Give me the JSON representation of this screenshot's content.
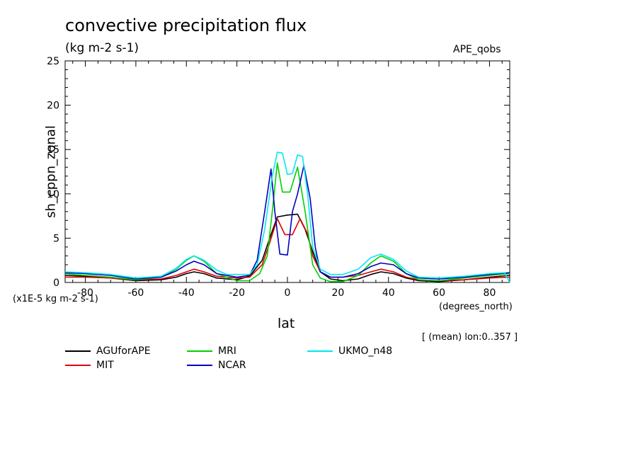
{
  "chart_data": {
    "type": "line",
    "title": "convective precipitation flux",
    "units": "(kg m-2 s-1)",
    "experiment": "APE_qobs",
    "ylabel": "sh_cppn_zonal",
    "scale_note": "(x1E-5 kg m-2 s-1)",
    "xlabel": "lat",
    "xunits": "(degrees_north)",
    "aggregation": "[ (mean) lon:0..357 ]",
    "xlim": [
      -88,
      88
    ],
    "ylim": [
      0,
      25
    ],
    "xticks": [
      -80,
      -60,
      -40,
      -20,
      0,
      20,
      40,
      60,
      80
    ],
    "yticks": [
      0,
      5,
      10,
      15,
      20,
      25
    ],
    "grid": false,
    "series": [
      {
        "name": "AGUforAPE",
        "color": "#000000",
        "points": [
          [
            -88,
            0.8
          ],
          [
            -80,
            0.7
          ],
          [
            -70,
            0.5
          ],
          [
            -60,
            0.2
          ],
          [
            -50,
            0.3
          ],
          [
            -44,
            0.6
          ],
          [
            -40,
            1.0
          ],
          [
            -37,
            1.2
          ],
          [
            -33,
            1.0
          ],
          [
            -28,
            0.5
          ],
          [
            -20,
            0.3
          ],
          [
            -15,
            0.7
          ],
          [
            -10,
            2.5
          ],
          [
            -7,
            5.0
          ],
          [
            -4,
            7.4
          ],
          [
            0,
            7.6
          ],
          [
            4,
            7.7
          ],
          [
            7,
            6.0
          ],
          [
            10,
            3.5
          ],
          [
            13,
            1.2
          ],
          [
            17,
            0.4
          ],
          [
            22,
            0.2
          ],
          [
            28,
            0.4
          ],
          [
            33,
            0.9
          ],
          [
            37,
            1.2
          ],
          [
            42,
            1.0
          ],
          [
            47,
            0.5
          ],
          [
            52,
            0.2
          ],
          [
            60,
            0.1
          ],
          [
            70,
            0.3
          ],
          [
            80,
            0.6
          ],
          [
            88,
            0.8
          ]
        ]
      },
      {
        "name": "MIT",
        "color": "#e00000",
        "points": [
          [
            -88,
            0.6
          ],
          [
            -80,
            0.6
          ],
          [
            -70,
            0.5
          ],
          [
            -60,
            0.3
          ],
          [
            -50,
            0.4
          ],
          [
            -44,
            0.8
          ],
          [
            -40,
            1.2
          ],
          [
            -37,
            1.5
          ],
          [
            -33,
            1.2
          ],
          [
            -28,
            0.7
          ],
          [
            -20,
            0.5
          ],
          [
            -15,
            0.6
          ],
          [
            -10,
            2.0
          ],
          [
            -7,
            4.5
          ],
          [
            -4,
            7.2
          ],
          [
            -1,
            5.4
          ],
          [
            2,
            5.4
          ],
          [
            5,
            7.2
          ],
          [
            8,
            5.5
          ],
          [
            10,
            3.0
          ],
          [
            13,
            1.2
          ],
          [
            17,
            0.6
          ],
          [
            22,
            0.6
          ],
          [
            28,
            0.8
          ],
          [
            33,
            1.2
          ],
          [
            37,
            1.5
          ],
          [
            42,
            1.2
          ],
          [
            47,
            0.6
          ],
          [
            52,
            0.3
          ],
          [
            60,
            0.2
          ],
          [
            70,
            0.3
          ],
          [
            80,
            0.5
          ],
          [
            88,
            0.6
          ]
        ]
      },
      {
        "name": "MRI",
        "color": "#00d000",
        "points": [
          [
            -88,
            1.0
          ],
          [
            -80,
            0.8
          ],
          [
            -70,
            0.6
          ],
          [
            -60,
            0.3
          ],
          [
            -50,
            0.6
          ],
          [
            -44,
            1.5
          ],
          [
            -40,
            2.5
          ],
          [
            -37,
            3.0
          ],
          [
            -33,
            2.4
          ],
          [
            -28,
            1.0
          ],
          [
            -20,
            0.2
          ],
          [
            -15,
            0.2
          ],
          [
            -11,
            1.0
          ],
          [
            -8,
            3.0
          ],
          [
            -6,
            8.0
          ],
          [
            -4,
            13.5
          ],
          [
            -2,
            10.2
          ],
          [
            1,
            10.2
          ],
          [
            4,
            13.0
          ],
          [
            7,
            8.0
          ],
          [
            10,
            2.0
          ],
          [
            13,
            0.5
          ],
          [
            17,
            0.1
          ],
          [
            22,
            0.1
          ],
          [
            28,
            0.8
          ],
          [
            33,
            2.2
          ],
          [
            37,
            3.0
          ],
          [
            42,
            2.4
          ],
          [
            47,
            1.0
          ],
          [
            52,
            0.3
          ],
          [
            60,
            0.2
          ],
          [
            70,
            0.5
          ],
          [
            80,
            0.8
          ],
          [
            88,
            1.0
          ]
        ]
      },
      {
        "name": "NCAR",
        "color": "#0000c0",
        "points": [
          [
            -88,
            1.1
          ],
          [
            -80,
            1.0
          ],
          [
            -70,
            0.8
          ],
          [
            -60,
            0.4
          ],
          [
            -50,
            0.6
          ],
          [
            -44,
            1.3
          ],
          [
            -40,
            2.0
          ],
          [
            -37,
            2.4
          ],
          [
            -33,
            2.0
          ],
          [
            -28,
            1.0
          ],
          [
            -20,
            0.6
          ],
          [
            -15,
            0.8
          ],
          [
            -12,
            2.5
          ],
          [
            -9,
            8.0
          ],
          [
            -6.5,
            12.8
          ],
          [
            -5,
            8.0
          ],
          [
            -3,
            3.2
          ],
          [
            0,
            3.1
          ],
          [
            2,
            8.0
          ],
          [
            4,
            10.0
          ],
          [
            6.5,
            13.2
          ],
          [
            9,
            9.5
          ],
          [
            11,
            4.0
          ],
          [
            13,
            1.2
          ],
          [
            17,
            0.6
          ],
          [
            22,
            0.6
          ],
          [
            28,
            1.0
          ],
          [
            33,
            1.8
          ],
          [
            37,
            2.2
          ],
          [
            42,
            2.0
          ],
          [
            47,
            1.0
          ],
          [
            52,
            0.5
          ],
          [
            60,
            0.4
          ],
          [
            70,
            0.6
          ],
          [
            80,
            0.9
          ],
          [
            88,
            1.1
          ]
        ]
      },
      {
        "name": "UKMO_n48",
        "color": "#00e8f0",
        "points": [
          [
            -88,
            1.2
          ],
          [
            -80,
            1.1
          ],
          [
            -70,
            0.9
          ],
          [
            -60,
            0.5
          ],
          [
            -50,
            0.7
          ],
          [
            -44,
            1.6
          ],
          [
            -40,
            2.6
          ],
          [
            -37,
            3.0
          ],
          [
            -33,
            2.5
          ],
          [
            -28,
            1.4
          ],
          [
            -24,
            0.9
          ],
          [
            -15,
            0.9
          ],
          [
            -12,
            2.0
          ],
          [
            -9,
            6.0
          ],
          [
            -6,
            12.0
          ],
          [
            -4,
            14.7
          ],
          [
            -2,
            14.6
          ],
          [
            0,
            12.2
          ],
          [
            2,
            12.3
          ],
          [
            4,
            14.4
          ],
          [
            6,
            14.2
          ],
          [
            8,
            10.0
          ],
          [
            10,
            4.0
          ],
          [
            13,
            1.5
          ],
          [
            17,
            0.9
          ],
          [
            22,
            0.9
          ],
          [
            28,
            1.5
          ],
          [
            33,
            2.8
          ],
          [
            37,
            3.2
          ],
          [
            42,
            2.6
          ],
          [
            47,
            1.3
          ],
          [
            52,
            0.6
          ],
          [
            60,
            0.5
          ],
          [
            70,
            0.7
          ],
          [
            80,
            1.0
          ],
          [
            86,
            1.1
          ],
          [
            88,
            0.0
          ]
        ]
      }
    ]
  }
}
